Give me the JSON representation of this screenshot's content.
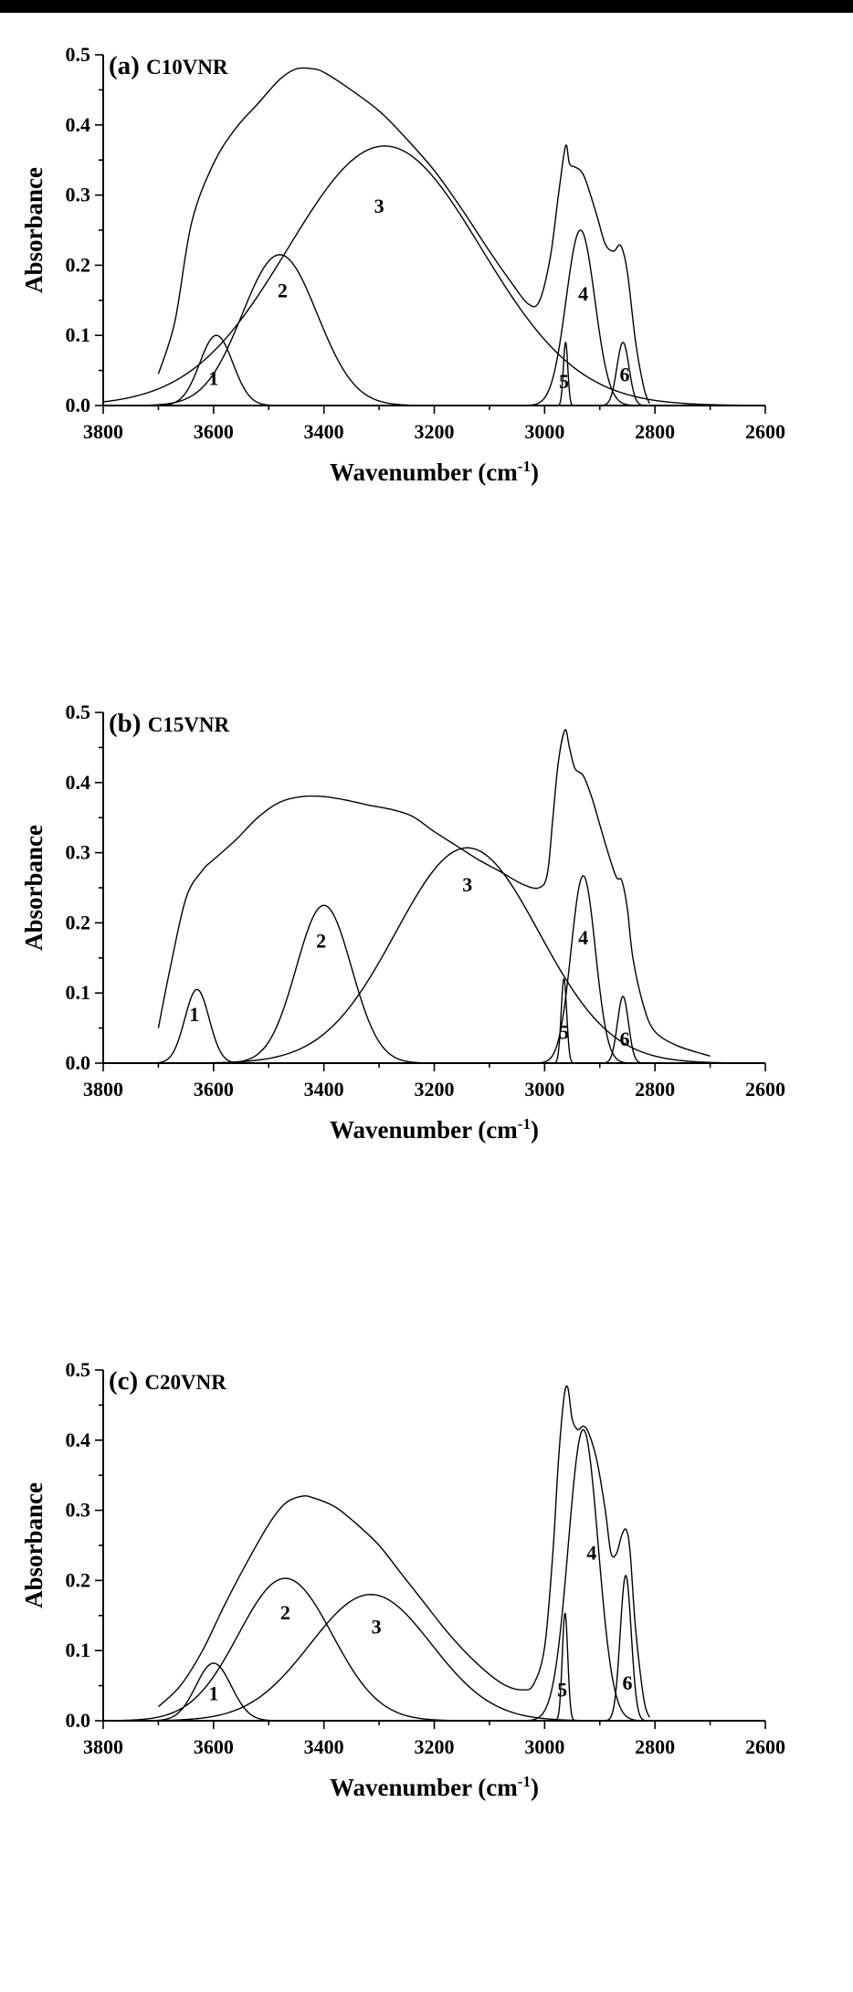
{
  "chart_data": [
    {
      "type": "line",
      "title": "(a) C10VNR",
      "title_prefix": "(a)",
      "title_name": "C10VNR",
      "xlabel": "Wavenumber (cm-1)",
      "xlabel_main": "Wavenumber (cm",
      "xlabel_sup": "-1",
      "xlabel_close": ")",
      "ylabel": "Absorbance",
      "xlim": [
        3800,
        2600
      ],
      "ylim": [
        0,
        0.5
      ],
      "xticks": [
        "3800",
        "3600",
        "3400",
        "3200",
        "3000",
        "2800",
        "2600"
      ],
      "yticks": [
        "0.0",
        "0.1",
        "0.2",
        "0.3",
        "0.4",
        "0.5"
      ],
      "envelope": {
        "x": [
          3700,
          3670,
          3640,
          3600,
          3560,
          3520,
          3480,
          3450,
          3420,
          3400,
          3360,
          3300,
          3250,
          3200,
          3150,
          3100,
          3060,
          3030,
          3010,
          2990,
          2975,
          2962,
          2955,
          2945,
          2935,
          2925,
          2905,
          2890,
          2875,
          2862,
          2850,
          2835,
          2820,
          2810
        ],
        "y": [
          0.045,
          0.12,
          0.26,
          0.345,
          0.395,
          0.43,
          0.465,
          0.48,
          0.48,
          0.475,
          0.455,
          0.42,
          0.38,
          0.335,
          0.28,
          0.22,
          0.175,
          0.145,
          0.148,
          0.21,
          0.3,
          0.37,
          0.345,
          0.34,
          0.335,
          0.32,
          0.27,
          0.23,
          0.22,
          0.228,
          0.19,
          0.09,
          0.025,
          0.003
        ]
      },
      "peaks": [
        {
          "label": "1",
          "center": 3595,
          "height": 0.1,
          "width": 30,
          "label_x": 3600,
          "label_y": 0.04
        },
        {
          "label": "2",
          "center": 3480,
          "height": 0.215,
          "width": 68,
          "label_x": 3475,
          "label_y": 0.165
        },
        {
          "label": "3",
          "center": 3290,
          "height": 0.37,
          "width": 175,
          "label_x": 3300,
          "label_y": 0.285
        },
        {
          "label": "4",
          "center": 2935,
          "height": 0.25,
          "width": 26,
          "label_x": 2930,
          "label_y": 0.16
        },
        {
          "label": "5",
          "center": 2962,
          "height": 0.09,
          "width": 4,
          "label_x": 2965,
          "label_y": 0.035
        },
        {
          "label": "6",
          "center": 2858,
          "height": 0.09,
          "width": 11,
          "label_x": 2855,
          "label_y": 0.045
        }
      ]
    },
    {
      "type": "line",
      "title": "(b) C15VNR",
      "title_prefix": "(b)",
      "title_name": "C15VNR",
      "xlabel": "Wavenumber (cm-1)",
      "xlabel_main": "Wavenumber (cm",
      "xlabel_sup": "-1",
      "xlabel_close": ")",
      "ylabel": "Absorbance",
      "xlim": [
        3800,
        2600
      ],
      "ylim": [
        0,
        0.5
      ],
      "xticks": [
        "3800",
        "3600",
        "3400",
        "3200",
        "3000",
        "2800",
        "2600"
      ],
      "yticks": [
        "0.0",
        "0.1",
        "0.2",
        "0.3",
        "0.4",
        "0.5"
      ],
      "envelope": {
        "x": [
          3700,
          3680,
          3650,
          3620,
          3600,
          3560,
          3520,
          3480,
          3440,
          3400,
          3360,
          3320,
          3280,
          3240,
          3200,
          3160,
          3120,
          3080,
          3040,
          3010,
          2995,
          2985,
          2975,
          2963,
          2955,
          2945,
          2930,
          2915,
          2900,
          2885,
          2870,
          2860,
          2850,
          2840,
          2820,
          2800,
          2760,
          2700
        ],
        "y": [
          0.05,
          0.13,
          0.235,
          0.275,
          0.29,
          0.318,
          0.35,
          0.372,
          0.38,
          0.38,
          0.375,
          0.368,
          0.362,
          0.352,
          0.33,
          0.31,
          0.29,
          0.273,
          0.255,
          0.25,
          0.27,
          0.35,
          0.43,
          0.475,
          0.45,
          0.42,
          0.41,
          0.38,
          0.34,
          0.3,
          0.265,
          0.26,
          0.22,
          0.15,
          0.08,
          0.045,
          0.025,
          0.01
        ]
      },
      "peaks": [
        {
          "label": "1",
          "center": 3630,
          "height": 0.105,
          "width": 22,
          "label_x": 3635,
          "label_y": 0.07
        },
        {
          "label": "2",
          "center": 3400,
          "height": 0.225,
          "width": 50,
          "label_x": 3405,
          "label_y": 0.175
        },
        {
          "label": "3",
          "center": 3140,
          "height": 0.307,
          "width": 130,
          "label_x": 3140,
          "label_y": 0.255
        },
        {
          "label": "4",
          "center": 2930,
          "height": 0.267,
          "width": 22,
          "label_x": 2930,
          "label_y": 0.18
        },
        {
          "label": "5",
          "center": 2965,
          "height": 0.12,
          "width": 5,
          "label_x": 2965,
          "label_y": 0.045
        },
        {
          "label": "6",
          "center": 2858,
          "height": 0.095,
          "width": 10,
          "label_x": 2855,
          "label_y": 0.035
        }
      ]
    },
    {
      "type": "line",
      "title": "(c) C20VNR",
      "title_prefix": "(c)",
      "title_name": "C20VNR",
      "xlabel": "Wavenumber (cm-1)",
      "xlabel_main": "Wavenumber (cm",
      "xlabel_sup": "-1",
      "xlabel_close": ")",
      "ylabel": "Absorbance",
      "xlim": [
        3800,
        2600
      ],
      "ylim": [
        0,
        0.5
      ],
      "xticks": [
        "3800",
        "3600",
        "3400",
        "3200",
        "3000",
        "2800",
        "2600"
      ],
      "yticks": [
        "0.0",
        "0.1",
        "0.2",
        "0.3",
        "0.4",
        "0.5"
      ],
      "envelope": {
        "x": [
          3700,
          3660,
          3620,
          3580,
          3540,
          3500,
          3470,
          3440,
          3420,
          3380,
          3340,
          3300,
          3260,
          3220,
          3180,
          3140,
          3100,
          3070,
          3040,
          3020,
          3000,
          2985,
          2975,
          2965,
          2958,
          2950,
          2940,
          2930,
          2920,
          2905,
          2890,
          2880,
          2870,
          2860,
          2852,
          2845,
          2835,
          2820,
          2810
        ],
        "y": [
          0.02,
          0.05,
          0.1,
          0.165,
          0.225,
          0.28,
          0.31,
          0.32,
          0.318,
          0.305,
          0.28,
          0.25,
          0.21,
          0.17,
          0.13,
          0.095,
          0.066,
          0.05,
          0.044,
          0.052,
          0.105,
          0.24,
          0.37,
          0.46,
          0.475,
          0.43,
          0.415,
          0.42,
          0.41,
          0.37,
          0.3,
          0.24,
          0.238,
          0.265,
          0.272,
          0.24,
          0.13,
          0.03,
          0.005
        ]
      },
      "peaks": [
        {
          "label": "1",
          "center": 3600,
          "height": 0.082,
          "width": 32,
          "label_x": 3600,
          "label_y": 0.04
        },
        {
          "label": "2",
          "center": 3470,
          "height": 0.203,
          "width": 85,
          "label_x": 3470,
          "label_y": 0.155
        },
        {
          "label": "3",
          "center": 3315,
          "height": 0.18,
          "width": 110,
          "label_x": 3305,
          "label_y": 0.135
        },
        {
          "label": "4",
          "center": 2930,
          "height": 0.415,
          "width": 27,
          "label_x": 2915,
          "label_y": 0.24
        },
        {
          "label": "5",
          "center": 2963,
          "height": 0.153,
          "width": 5,
          "label_x": 2968,
          "label_y": 0.045
        },
        {
          "label": "6",
          "center": 2853,
          "height": 0.207,
          "width": 10,
          "label_x": 2850,
          "label_y": 0.055
        }
      ]
    }
  ]
}
